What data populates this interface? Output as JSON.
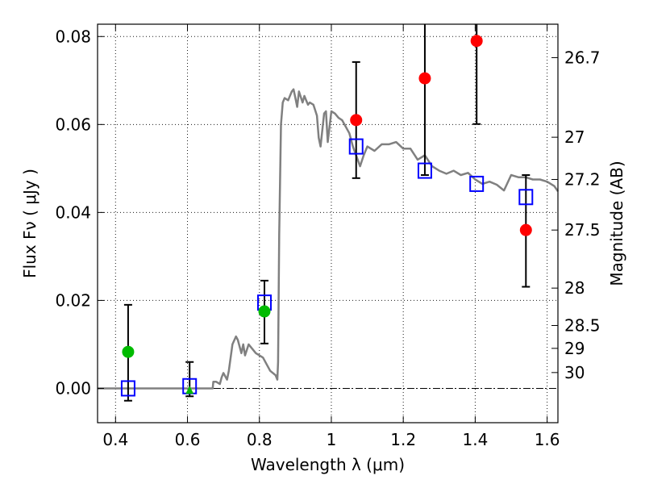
{
  "chart_data": {
    "type": "scatter",
    "xlabel": "Wavelength  λ (μm)",
    "ylabel": "Flux  Fν  ( μJy )",
    "ylabel_right": "Magnitude (AB)",
    "xlim": [
      0.35,
      1.63
    ],
    "ylim": [
      -0.0078,
      0.0828
    ],
    "grid": true,
    "x_ticks": [
      0.4,
      0.6,
      0.8,
      1.0,
      1.2,
      1.4,
      1.6
    ],
    "x_tick_labels": [
      "0.4",
      "0.6",
      "0.8",
      "1",
      "1.2",
      "1.4",
      "1.6"
    ],
    "y_ticks": [
      0.0,
      0.02,
      0.04,
      0.06,
      0.08
    ],
    "y_tick_labels": [
      "0.00",
      "0.02",
      "0.04",
      "0.06",
      "0.08"
    ],
    "mag_ticks": [
      {
        "label": "26.7",
        "flux": 0.0752
      },
      {
        "label": "27",
        "flux": 0.0571
      },
      {
        "label": "27.2",
        "flux": 0.0475
      },
      {
        "label": "27.5",
        "flux": 0.036
      },
      {
        "label": "28",
        "flux": 0.0228
      },
      {
        "label": "28.5",
        "flux": 0.0143
      },
      {
        "label": "29",
        "flux": 0.0091
      },
      {
        "label": "30",
        "flux": 0.0036
      }
    ],
    "series": [
      {
        "name": "model SED",
        "kind": "line",
        "color": "#808080",
        "x": [
          0.35,
          0.67,
          0.672,
          0.68,
          0.69,
          0.695,
          0.7,
          0.71,
          0.715,
          0.725,
          0.735,
          0.74,
          0.75,
          0.755,
          0.76,
          0.77,
          0.79,
          0.81,
          0.83,
          0.845,
          0.85,
          0.852,
          0.855,
          0.86,
          0.865,
          0.87,
          0.88,
          0.89,
          0.895,
          0.9,
          0.905,
          0.91,
          0.92,
          0.925,
          0.93,
          0.935,
          0.94,
          0.95,
          0.96,
          0.965,
          0.97,
          0.98,
          0.985,
          0.99,
          1.0,
          1.01,
          1.02,
          1.03,
          1.05,
          1.06,
          1.08,
          1.09,
          1.1,
          1.12,
          1.14,
          1.16,
          1.18,
          1.2,
          1.22,
          1.24,
          1.26,
          1.28,
          1.3,
          1.32,
          1.34,
          1.36,
          1.38,
          1.4,
          1.42,
          1.44,
          1.46,
          1.48,
          1.5,
          1.52,
          1.54,
          1.56,
          1.58,
          1.6,
          1.62,
          1.63
        ],
        "y": [
          0.0,
          0.0,
          0.0015,
          0.0015,
          0.001,
          0.0025,
          0.0035,
          0.002,
          0.004,
          0.01,
          0.0118,
          0.011,
          0.008,
          0.01,
          0.0075,
          0.01,
          0.008,
          0.007,
          0.004,
          0.003,
          0.002,
          0.006,
          0.035,
          0.06,
          0.065,
          0.066,
          0.0655,
          0.0675,
          0.068,
          0.066,
          0.064,
          0.0675,
          0.065,
          0.0665,
          0.0655,
          0.0645,
          0.065,
          0.0645,
          0.062,
          0.057,
          0.055,
          0.0625,
          0.063,
          0.056,
          0.063,
          0.0625,
          0.0615,
          0.061,
          0.058,
          0.055,
          0.0505,
          0.053,
          0.055,
          0.054,
          0.0555,
          0.0555,
          0.056,
          0.0545,
          0.0545,
          0.052,
          0.053,
          0.0505,
          0.0495,
          0.0488,
          0.0495,
          0.0485,
          0.049,
          0.0475,
          0.0465,
          0.047,
          0.0463,
          0.045,
          0.0485,
          0.048,
          0.048,
          0.0475,
          0.0475,
          0.047,
          0.046,
          0.0448
        ]
      },
      {
        "name": "model photometry",
        "kind": "open-square",
        "color": "#0000ff",
        "x": [
          0.435,
          0.606,
          0.814,
          1.069,
          1.26,
          1.404,
          1.541
        ],
        "y": [
          0.0,
          0.0005,
          0.0195,
          0.055,
          0.0495,
          0.0465,
          0.0435
        ]
      },
      {
        "name": "detections (green)",
        "kind": "filled-circle",
        "color": "#00bb00",
        "x": [
          0.435,
          0.814
        ],
        "y": [
          0.0083,
          0.0175
        ]
      },
      {
        "name": "detections (red)",
        "kind": "filled-circle",
        "color": "#ff0000",
        "x": [
          1.069,
          1.26,
          1.404,
          1.541
        ],
        "y": [
          0.061,
          0.0705,
          0.079,
          0.036
        ]
      },
      {
        "name": "upper limit (green triangle)",
        "kind": "filled-triangle",
        "color": "#00bb00",
        "x": [
          0.606
        ],
        "y": [
          -0.0005
        ]
      }
    ],
    "error_bars": [
      {
        "x": 0.435,
        "low": -0.0028,
        "high": 0.019
      },
      {
        "x": 0.606,
        "low": -0.0018,
        "high": 0.006
      },
      {
        "x": 0.814,
        "low": 0.0102,
        "high": 0.0245
      },
      {
        "x": 1.069,
        "low": 0.0478,
        "high": 0.0742
      },
      {
        "x": 1.26,
        "low": 0.0485,
        "high": 0.0828
      },
      {
        "x": 1.404,
        "low": 0.0601,
        "high": 0.0828
      },
      {
        "x": 1.541,
        "low": 0.0231,
        "high": 0.0485
      }
    ]
  }
}
